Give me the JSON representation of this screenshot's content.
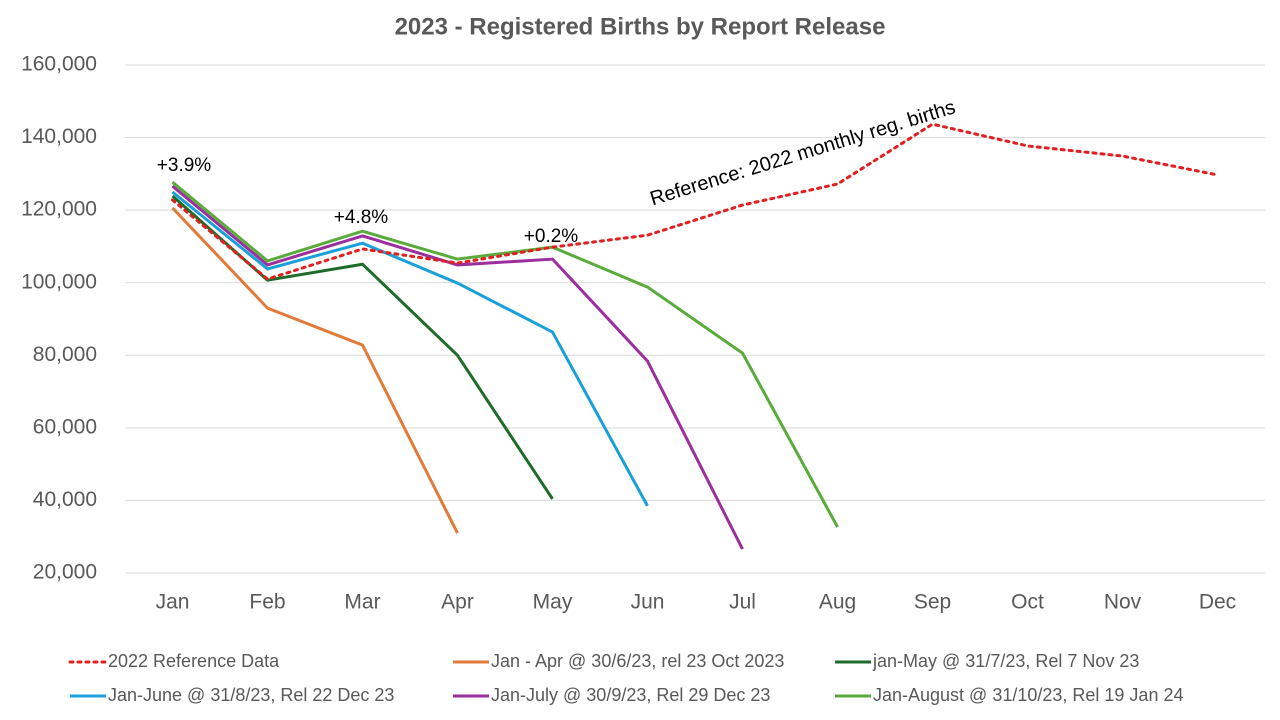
{
  "chart_data": {
    "type": "line",
    "title": "2023 - Registered Births by Report Release",
    "categories": [
      "Jan",
      "Feb",
      "Mar",
      "Apr",
      "May",
      "Jun",
      "Jul",
      "Aug",
      "Sep",
      "Oct",
      "Nov",
      "Dec"
    ],
    "ylim": [
      20000,
      160000
    ],
    "yticks": [
      {
        "value": 20000,
        "label": "20,000"
      },
      {
        "value": 40000,
        "label": "40,000"
      },
      {
        "value": 60000,
        "label": "60,000"
      },
      {
        "value": 80000,
        "label": "80,000"
      },
      {
        "value": 100000,
        "label": "100,000"
      },
      {
        "value": 120000,
        "label": "120,000"
      },
      {
        "value": 140000,
        "label": "140,000"
      },
      {
        "value": 160000,
        "label": "160,000"
      }
    ],
    "grid": true,
    "legend": "bottom",
    "series": [
      {
        "name": "2022 Reference Data",
        "color": "#e02020",
        "style": "dotted",
        "values": [
          122800,
          101000,
          109300,
          105400,
          109800,
          113100,
          121400,
          127200,
          143700,
          137700,
          134900,
          129700
        ]
      },
      {
        "name": "Jan - Apr @ 30/6/23, rel 23 Oct 2023",
        "color": "#e07b39",
        "values": [
          120600,
          93000,
          82800,
          31000,
          null,
          null,
          null,
          null,
          null,
          null,
          null,
          null
        ]
      },
      {
        "name": "jan-May @ 31/7/23, Rel 7 Nov 23",
        "color": "#1e6b2a",
        "values": [
          123900,
          100700,
          105100,
          80000,
          40400,
          null,
          null,
          null,
          null,
          null,
          null,
          null
        ]
      },
      {
        "name": "Jan-June @ 31/8/23, Rel 22 Dec 23",
        "color": "#1aa0d8",
        "values": [
          125000,
          103800,
          110900,
          99900,
          86400,
          38500,
          null,
          null,
          null,
          null,
          null,
          null
        ]
      },
      {
        "name": "Jan-July @ 30/9/23, Rel 29 Dec 23",
        "color": "#9b2f9e",
        "values": [
          126600,
          104900,
          112900,
          104900,
          106500,
          78400,
          26600,
          null,
          null,
          null,
          null,
          null
        ]
      },
      {
        "name": "Jan-August @ 31/10/23, Rel 19 Jan 24",
        "color": "#5aab3c",
        "values": [
          127700,
          106000,
          114200,
          106500,
          109800,
          98800,
          80600,
          32700,
          null,
          null,
          null,
          null
        ]
      }
    ],
    "annotations": [
      "+3.9%",
      "+4.8%",
      "+0.2%",
      "Reference: 2022 monthly reg. births"
    ]
  }
}
